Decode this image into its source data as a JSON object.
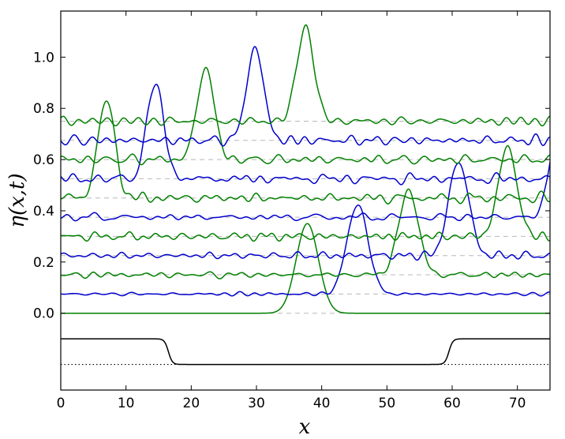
{
  "chart_data": {
    "type": "line",
    "xlabel": "x",
    "ylabel": "η(x,t)",
    "xlim": [
      0,
      75
    ],
    "ylim": [
      -0.3,
      1.18
    ],
    "x_ticks": [
      "0",
      "10",
      "20",
      "30",
      "40",
      "50",
      "60",
      "70"
    ],
    "y_ticks": [
      "0.0",
      "0.2",
      "0.4",
      "0.6",
      "0.8",
      "1.0"
    ],
    "grid": false,
    "legend": "none",
    "baseline_offsets": [
      0.0,
      0.075,
      0.15,
      0.225,
      0.3,
      0.375,
      0.45,
      0.525,
      0.6,
      0.675,
      0.75
    ],
    "series": [
      {
        "color": "#008000",
        "offset": 0.0,
        "noise": 0.0,
        "peak_x": 37.8,
        "peak_height": 0.35,
        "width": 1.7
      },
      {
        "color": "#0000cc",
        "offset": 0.075,
        "noise": 0.006,
        "peak_x": 45.5,
        "peak_height": 0.35,
        "width": 1.6
      },
      {
        "color": "#008000",
        "offset": 0.15,
        "noise": 0.01,
        "peak_x": 53.3,
        "peak_height": 0.33,
        "width": 1.5
      },
      {
        "color": "#0000cc",
        "offset": 0.225,
        "noise": 0.012,
        "peak_x": 61.0,
        "peak_height": 0.37,
        "width": 1.5
      },
      {
        "color": "#008000",
        "offset": 0.3,
        "noise": 0.014,
        "peak_x": 68.5,
        "peak_height": 0.35,
        "width": 1.4
      },
      {
        "color": "#0000cc",
        "offset": 0.375,
        "noise": 0.014,
        "peak_x": 76.5,
        "peak_height": 0.38,
        "width": 1.4
      },
      {
        "color": "#008000",
        "offset": 0.45,
        "noise": 0.016,
        "peak_x": 7.0,
        "peak_height": 0.38,
        "width": 1.3
      },
      {
        "color": "#0000cc",
        "offset": 0.525,
        "noise": 0.016,
        "peak_x": 14.5,
        "peak_height": 0.37,
        "width": 1.3
      },
      {
        "color": "#008000",
        "offset": 0.6,
        "noise": 0.016,
        "peak_x": 22.2,
        "peak_height": 0.36,
        "width": 1.3
      },
      {
        "color": "#0000cc",
        "offset": 0.675,
        "noise": 0.016,
        "peak_x": 29.8,
        "peak_height": 0.36,
        "width": 1.3
      },
      {
        "color": "#008000",
        "offset": 0.75,
        "noise": 0.016,
        "peak_x": 37.5,
        "peak_height": 0.37,
        "width": 1.3
      }
    ],
    "bathymetry": {
      "color": "#000000",
      "upper_level": -0.1,
      "lower_level": -0.2,
      "step_down_x": 16.5,
      "step_up_x": 59.5,
      "transition_width": 0.6
    },
    "reference_line": {
      "style": "dotted",
      "level": -0.2
    }
  }
}
